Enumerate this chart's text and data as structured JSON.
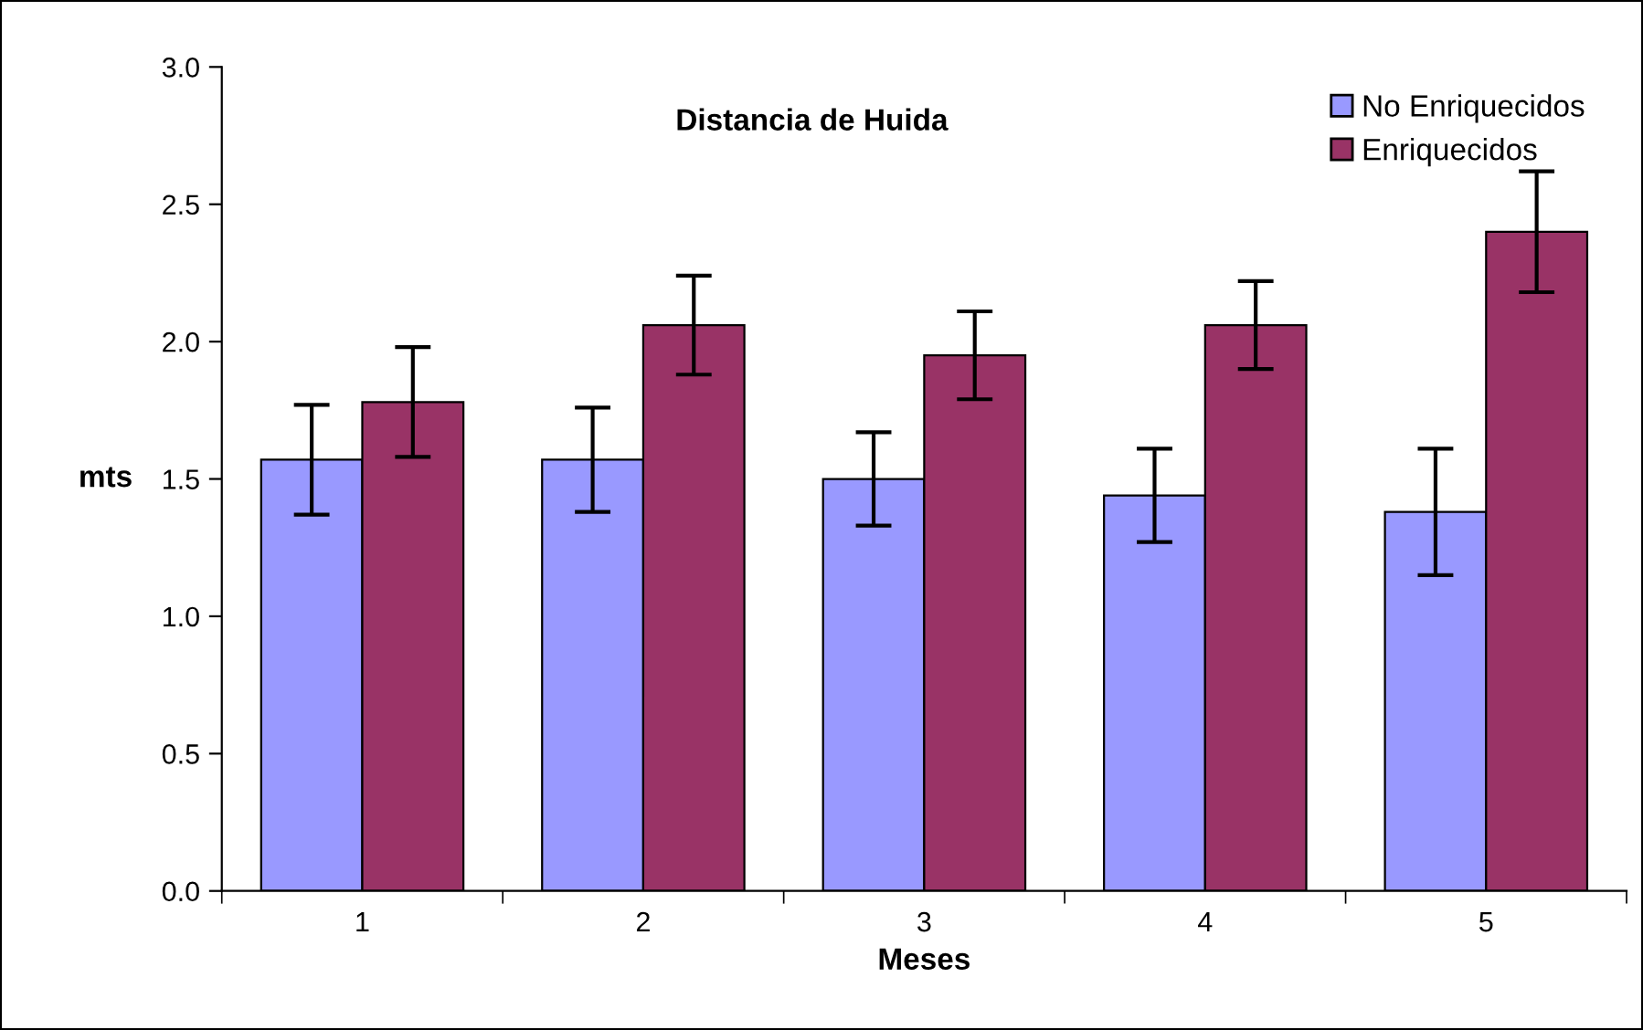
{
  "chart_data": {
    "type": "bar",
    "title": "Distancia de Huida",
    "xlabel": "Meses",
    "ylabel": "mts",
    "categories": [
      "1",
      "2",
      "3",
      "4",
      "5"
    ],
    "series": [
      {
        "name": "No Enriquecidos",
        "color": "#9999ff",
        "values": [
          1.57,
          1.57,
          1.5,
          1.44,
          1.38
        ],
        "errors": [
          0.2,
          0.19,
          0.17,
          0.17,
          0.23
        ]
      },
      {
        "name": "Enriquecidos",
        "color": "#993366",
        "values": [
          1.78,
          2.06,
          1.95,
          2.06,
          2.4
        ],
        "errors": [
          0.2,
          0.18,
          0.16,
          0.16,
          0.22
        ]
      }
    ],
    "ylim": [
      0,
      3
    ],
    "yticks": [
      {
        "value": 0,
        "label": "0.0"
      },
      {
        "value": 0.5,
        "label": "0.5"
      },
      {
        "value": 1,
        "label": "1.0"
      },
      {
        "value": 1.5,
        "label": "1.5"
      },
      {
        "value": 2,
        "label": "2.0"
      },
      {
        "value": 2.5,
        "label": "2.5"
      },
      {
        "value": 3,
        "label": "3.0"
      }
    ],
    "grid": false,
    "legend": "top right"
  }
}
